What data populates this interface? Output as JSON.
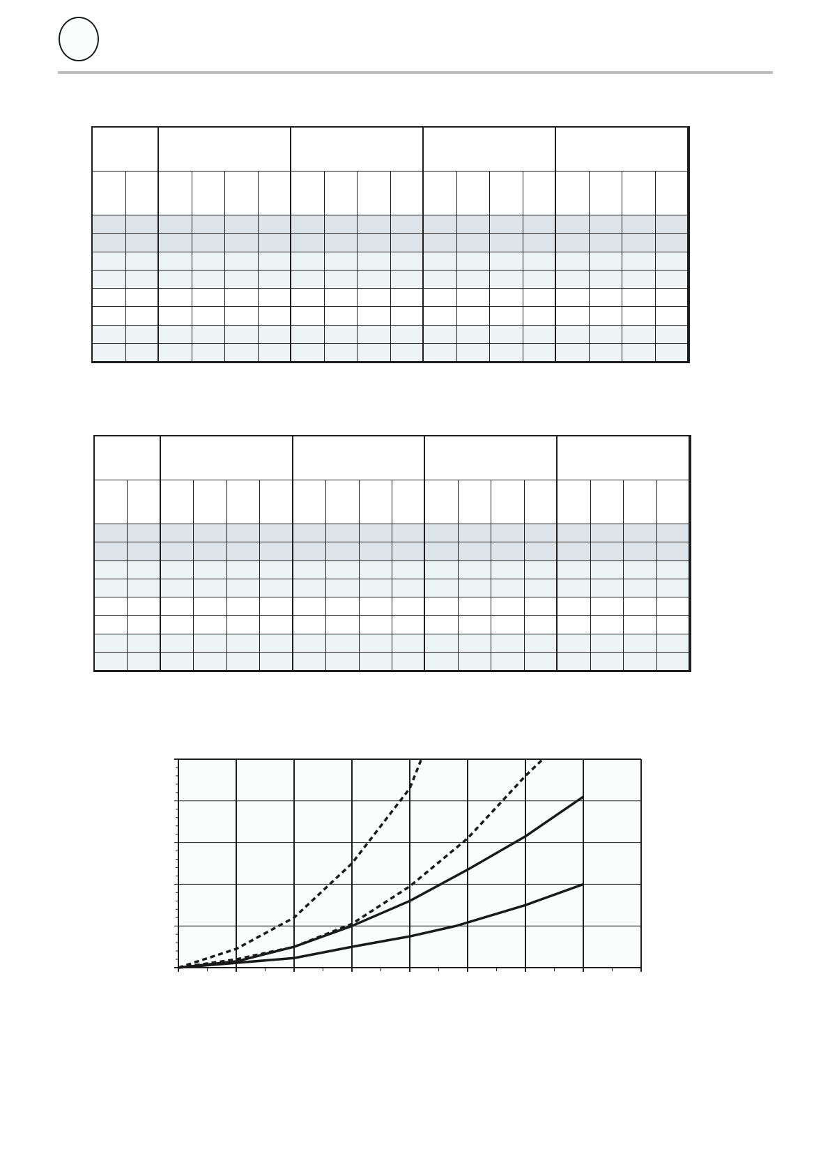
{
  "colors": {
    "row_dark": "#dfe4e9",
    "row_light": "#eef3f6",
    "row_white": "#ffffff",
    "rule": "#bdbdbd",
    "line": "#1e1e1e"
  },
  "tables": [
    {
      "group_count": 5,
      "subcolumns_per_group": [
        2,
        4,
        4,
        4,
        4
      ],
      "row_shading": [
        "dark",
        "dark",
        "light",
        "light",
        "white",
        "white",
        "light",
        "light"
      ]
    },
    {
      "group_count": 5,
      "subcolumns_per_group": [
        2,
        4,
        4,
        4,
        4
      ],
      "row_shading": [
        "dark",
        "dark",
        "light",
        "light",
        "white",
        "white",
        "light",
        "light"
      ]
    }
  ],
  "chart_data": {
    "type": "line",
    "title": "",
    "xlabel": "",
    "ylabel": "",
    "xlim": [
      0,
      8
    ],
    "ylim": [
      0,
      5
    ],
    "grid": true,
    "series": [
      {
        "style": "dashed",
        "x": [
          0,
          1,
          2,
          3,
          4,
          4.2
        ],
        "y": [
          0,
          0.45,
          1.2,
          2.5,
          4.3,
          5
        ]
      },
      {
        "style": "dashed",
        "x": [
          0,
          1,
          2,
          3,
          4,
          5,
          6,
          6.3
        ],
        "y": [
          0,
          0.2,
          0.5,
          1.05,
          1.95,
          3.1,
          4.6,
          5
        ]
      },
      {
        "style": "solid",
        "x": [
          0,
          1,
          2,
          3,
          4,
          5,
          6,
          7
        ],
        "y": [
          0,
          0.15,
          0.5,
          1.0,
          1.6,
          2.35,
          3.15,
          4.1
        ]
      },
      {
        "style": "solid",
        "x": [
          0,
          2,
          3,
          4,
          4.8,
          6,
          7
        ],
        "y": [
          0,
          0.23,
          0.5,
          0.75,
          1.0,
          1.5,
          2.0
        ]
      }
    ]
  }
}
